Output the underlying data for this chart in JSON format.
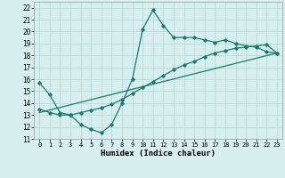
{
  "xlabel": "Humidex (Indice chaleur)",
  "ylabel": "",
  "background_color": "#d6eeee",
  "grid_color": "#b8dada",
  "line_color": "#1a7a6e",
  "xlim": [
    -0.5,
    23.5
  ],
  "ylim": [
    11,
    22.5
  ],
  "xticks": [
    0,
    1,
    2,
    3,
    4,
    5,
    6,
    7,
    8,
    9,
    10,
    11,
    12,
    13,
    14,
    15,
    16,
    17,
    18,
    19,
    20,
    21,
    22,
    23
  ],
  "yticks": [
    11,
    12,
    13,
    14,
    15,
    16,
    17,
    18,
    19,
    20,
    21,
    22
  ],
  "line1_x": [
    0,
    1,
    2,
    3,
    4,
    5,
    6,
    7,
    8,
    9,
    10,
    11,
    12,
    13,
    14,
    15,
    16,
    17,
    18,
    19,
    20,
    21,
    22,
    23
  ],
  "line1_y": [
    15.7,
    14.7,
    13.2,
    13.0,
    12.2,
    11.8,
    11.5,
    12.2,
    14.0,
    16.0,
    20.2,
    21.8,
    20.5,
    19.5,
    19.5,
    19.5,
    19.3,
    19.1,
    19.3,
    19.0,
    18.8,
    18.7,
    18.3,
    18.2
  ],
  "line2_x": [
    0,
    1,
    2,
    3,
    4,
    5,
    6,
    7,
    8,
    9,
    10,
    11,
    12,
    13,
    14,
    15,
    16,
    17,
    18,
    19,
    20,
    21,
    22,
    23
  ],
  "line2_y": [
    13.5,
    13.2,
    13.0,
    13.0,
    13.2,
    13.4,
    13.6,
    13.9,
    14.3,
    14.8,
    15.3,
    15.8,
    16.3,
    16.8,
    17.2,
    17.5,
    17.9,
    18.2,
    18.4,
    18.6,
    18.7,
    18.8,
    18.9,
    18.2
  ],
  "line3_x": [
    0,
    23
  ],
  "line3_y": [
    13.2,
    18.2
  ]
}
